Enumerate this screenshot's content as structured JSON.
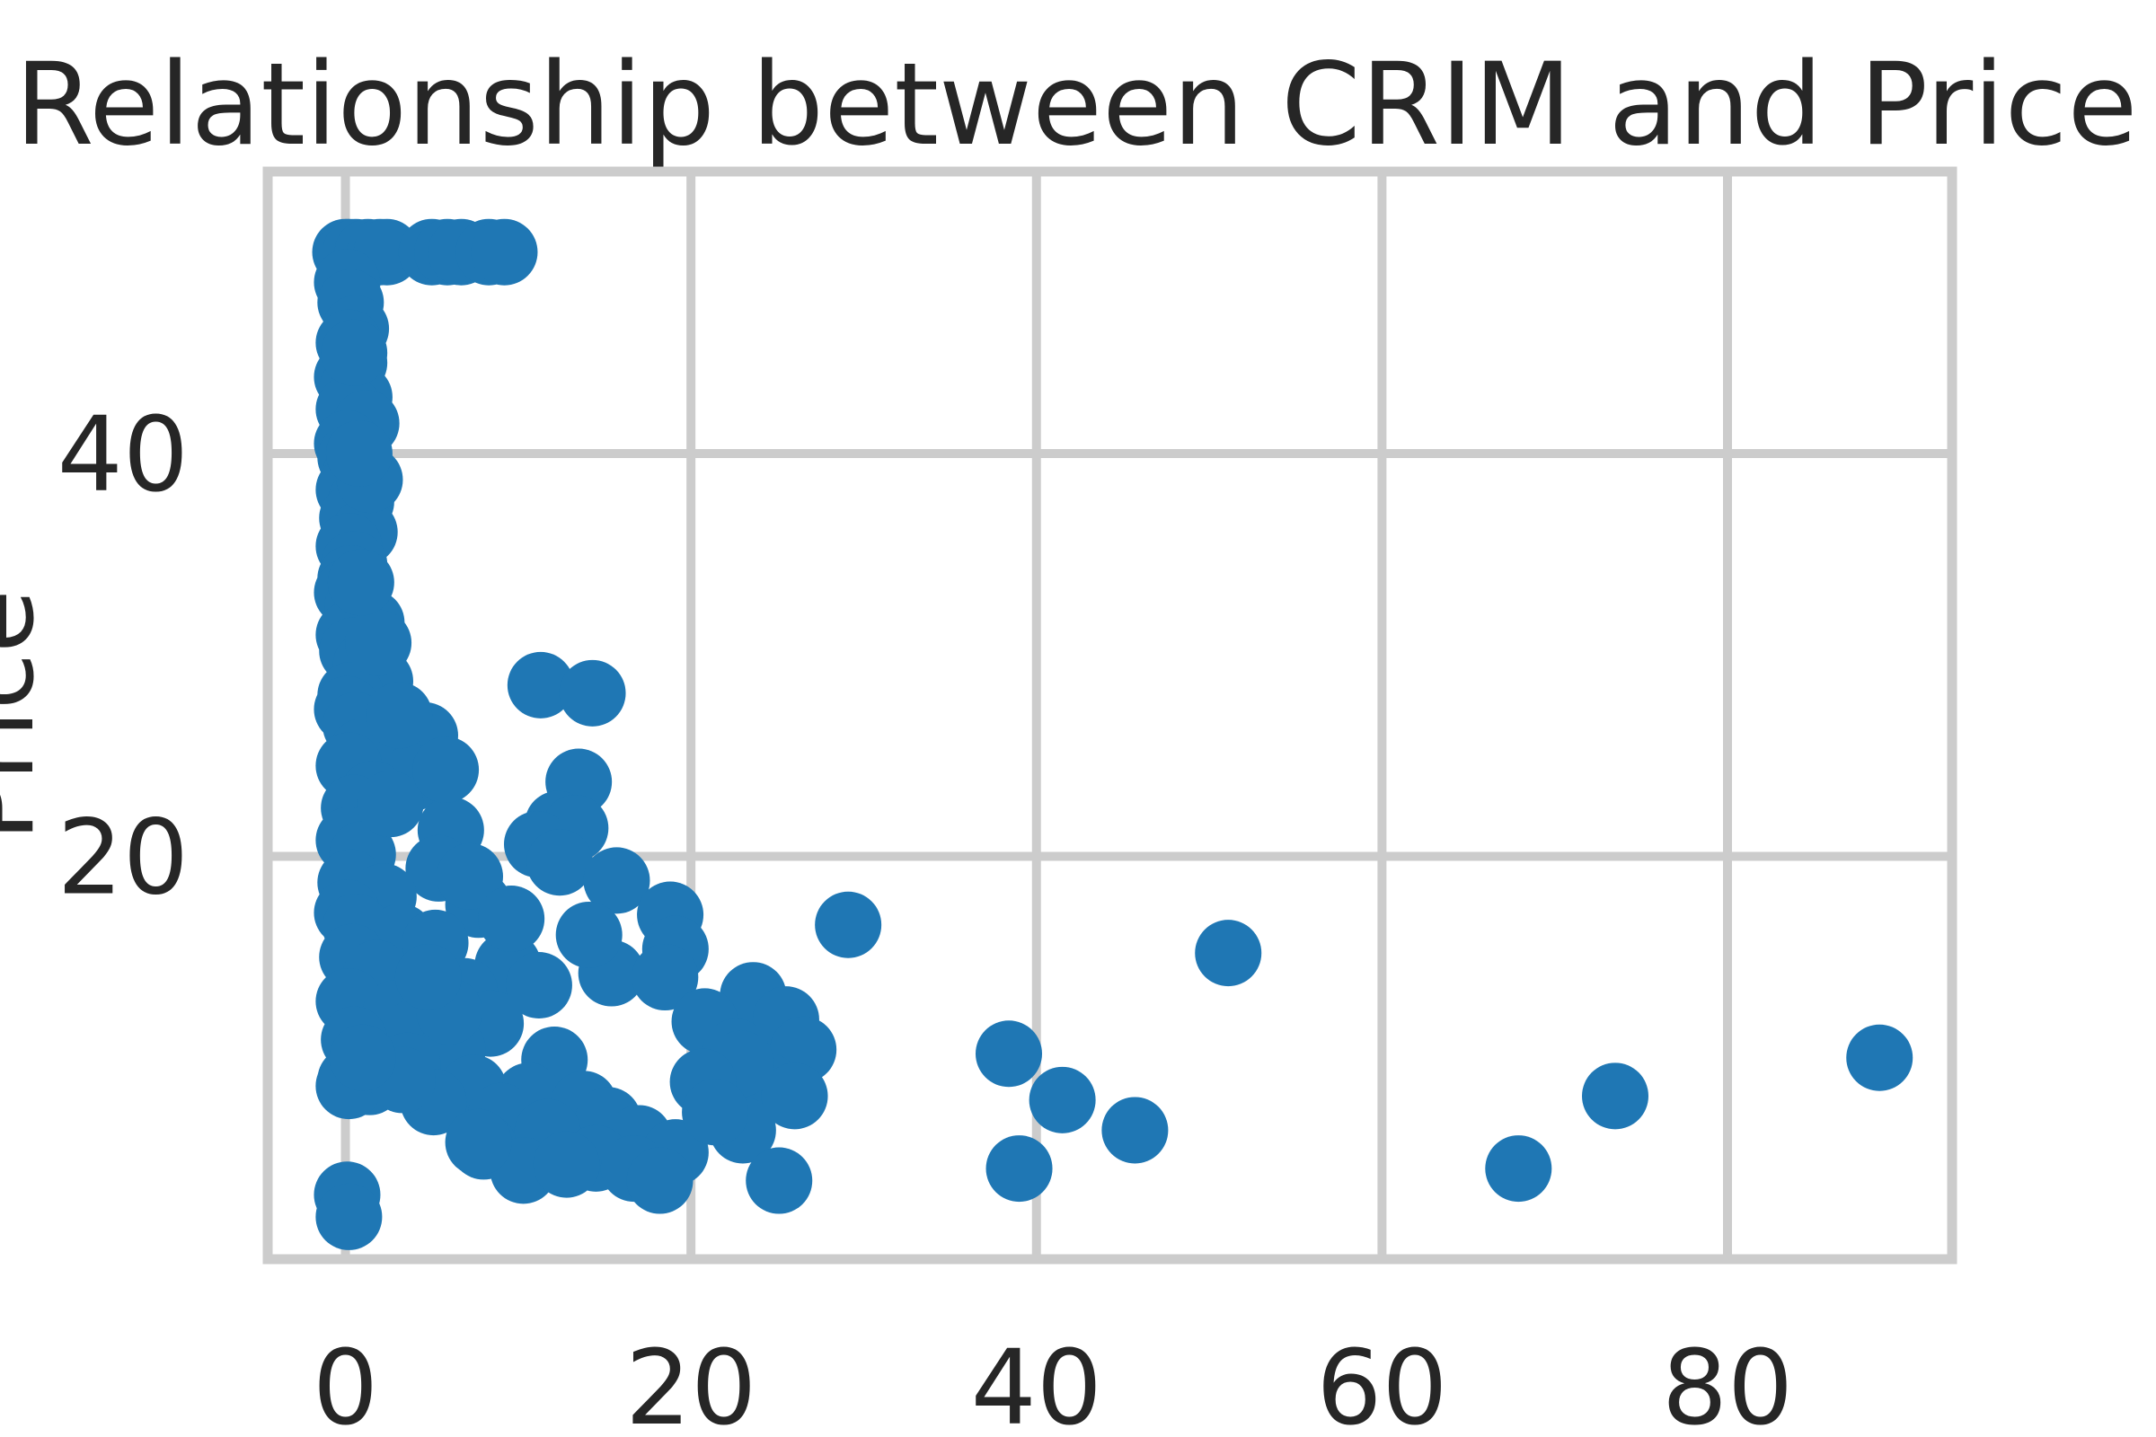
{
  "chart_data": {
    "type": "scatter",
    "title": "Relationship between CRIM and Price",
    "xlabel": "",
    "ylabel": "Price",
    "xlim": [
      -4.5,
      93
    ],
    "ylim": [
      0,
      54
    ],
    "xticks": [
      0,
      20,
      40,
      60,
      80
    ],
    "yticks": [
      20,
      40
    ],
    "grid": true,
    "color": "#1f77b4",
    "points": [
      [
        0.0,
        50.0
      ],
      [
        0.2,
        50.0
      ],
      [
        0.6,
        50.0
      ],
      [
        1.3,
        50.0
      ],
      [
        2.0,
        50.0
      ],
      [
        2.4,
        50.0
      ],
      [
        5.0,
        50.0
      ],
      [
        5.9,
        50.0
      ],
      [
        6.7,
        50.0
      ],
      [
        8.3,
        50.0
      ],
      [
        9.2,
        50.0
      ],
      [
        0.1,
        48.5
      ],
      [
        0.3,
        47.5
      ],
      [
        0.6,
        46.2
      ],
      [
        0.2,
        45.5
      ],
      [
        0.5,
        44.5
      ],
      [
        0.1,
        43.8
      ],
      [
        0.4,
        43.2
      ],
      [
        0.8,
        42.8
      ],
      [
        0.2,
        42.2
      ],
      [
        1.2,
        41.5
      ],
      [
        0.1,
        40.5
      ],
      [
        0.3,
        39.8
      ],
      [
        0.6,
        39.0
      ],
      [
        0.2,
        38.2
      ],
      [
        0.9,
        37.6
      ],
      [
        0.4,
        36.8
      ],
      [
        1.1,
        36.1
      ],
      [
        0.2,
        35.4
      ],
      [
        0.5,
        34.5
      ],
      [
        0.3,
        33.8
      ],
      [
        0.1,
        33.1
      ],
      [
        0.7,
        32.4
      ],
      [
        1.5,
        31.6
      ],
      [
        0.2,
        31.0
      ],
      [
        0.4,
        30.2
      ],
      [
        1.2,
        29.5
      ],
      [
        2.0,
        28.7
      ],
      [
        0.3,
        28.0
      ],
      [
        0.1,
        27.3
      ],
      [
        0.6,
        26.5
      ],
      [
        4.6,
        26.0
      ],
      [
        1.0,
        25.2
      ],
      [
        0.2,
        24.5
      ],
      [
        3.9,
        23.9
      ],
      [
        1.6,
        23.1
      ],
      [
        0.5,
        22.4
      ],
      [
        6.1,
        21.3
      ],
      [
        0.2,
        20.8
      ],
      [
        1.0,
        20.1
      ],
      [
        5.4,
        19.4
      ],
      [
        0.3,
        18.7
      ],
      [
        2.2,
        18.0
      ],
      [
        7.7,
        17.6
      ],
      [
        0.1,
        17.2
      ],
      [
        0.6,
        16.5
      ],
      [
        3.2,
        16.0
      ],
      [
        5.2,
        15.7
      ],
      [
        0.4,
        15.0
      ],
      [
        9.4,
        14.6
      ],
      [
        1.8,
        14.2
      ],
      [
        11.2,
        13.6
      ],
      [
        6.9,
        13.3
      ],
      [
        0.2,
        12.8
      ],
      [
        2.9,
        12.2
      ],
      [
        8.4,
        11.7
      ],
      [
        4.1,
        11.3
      ],
      [
        0.5,
        10.9
      ],
      [
        6.2,
        10.4
      ],
      [
        12.1,
        9.9
      ],
      [
        2.7,
        9.4
      ],
      [
        0.3,
        8.9
      ],
      [
        7.4,
        8.5
      ],
      [
        10.6,
        8.1
      ],
      [
        1.4,
        8.8
      ],
      [
        3.6,
        9.6
      ],
      [
        0.2,
        8.6
      ],
      [
        5.1,
        7.8
      ],
      [
        13.8,
        7.7
      ],
      [
        9.0,
        7.1
      ],
      [
        15.2,
        6.9
      ],
      [
        11.7,
        6.3
      ],
      [
        17.0,
        6.0
      ],
      [
        8.0,
        5.6
      ],
      [
        19.1,
        5.3
      ],
      [
        14.5,
        5.0
      ],
      [
        10.3,
        4.4
      ],
      [
        7.7,
        5.8
      ],
      [
        12.8,
        4.7
      ],
      [
        16.7,
        4.5
      ],
      [
        18.2,
        3.9
      ],
      [
        0.1,
        3.2
      ],
      [
        0.2,
        2.1
      ],
      [
        11.3,
        28.5
      ],
      [
        14.3,
        28.1
      ],
      [
        13.5,
        23.7
      ],
      [
        12.3,
        21.6
      ],
      [
        13.3,
        21.4
      ],
      [
        11.1,
        20.6
      ],
      [
        12.4,
        19.7
      ],
      [
        15.7,
        18.8
      ],
      [
        18.8,
        17.1
      ],
      [
        19.1,
        15.4
      ],
      [
        15.4,
        14.2
      ],
      [
        14.1,
        16.1
      ],
      [
        18.5,
        14.0
      ],
      [
        23.6,
        13.1
      ],
      [
        29.1,
        16.6
      ],
      [
        51.1,
        15.2
      ],
      [
        20.8,
        11.8
      ],
      [
        25.5,
        11.9
      ],
      [
        26.5,
        10.4
      ],
      [
        22.6,
        10.3
      ],
      [
        24.4,
        8.6
      ],
      [
        26.0,
        8.1
      ],
      [
        22.9,
        9.7
      ],
      [
        20.7,
        8.8
      ],
      [
        38.4,
        10.2
      ],
      [
        41.5,
        7.9
      ],
      [
        45.7,
        6.4
      ],
      [
        39.0,
        4.5
      ],
      [
        67.9,
        4.5
      ],
      [
        73.5,
        8.1
      ],
      [
        88.8,
        10.0
      ],
      [
        23.0,
        6.4
      ],
      [
        25.1,
        3.9
      ],
      [
        21.4,
        7.3
      ],
      [
        3.3,
        8.9
      ],
      [
        1.0,
        10.0
      ],
      [
        6.0,
        12.3
      ],
      [
        4.8,
        14.0
      ],
      [
        7.2,
        19.0
      ],
      [
        9.6,
        16.9
      ],
      [
        2.6,
        22.6
      ],
      [
        5.8,
        24.3
      ],
      [
        3.1,
        27.0
      ],
      [
        1.9,
        30.6
      ],
      [
        0.9,
        33.6
      ],
      [
        1.4,
        38.7
      ],
      [
        0.5,
        45.0
      ],
      [
        0.8,
        40.0
      ]
    ]
  }
}
